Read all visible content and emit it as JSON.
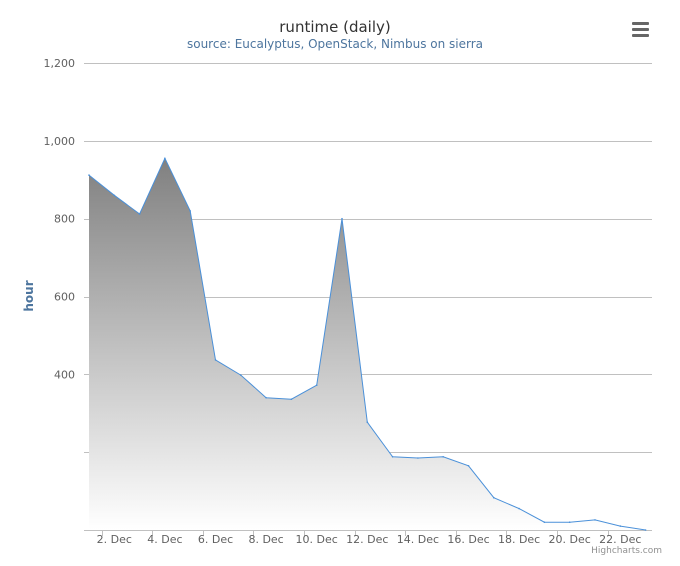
{
  "chart_data": {
    "type": "area",
    "title": "runtime (daily)",
    "subtitle": "source: Eucalyptus, OpenStack, Nimbus on sierra",
    "xlabel": "",
    "ylabel": "hour",
    "x": [
      "1. Dec",
      "2. Dec",
      "3. Dec",
      "4. Dec",
      "5. Dec",
      "6. Dec",
      "7. Dec",
      "8. Dec",
      "9. Dec",
      "10. Dec",
      "11. Dec",
      "12. Dec",
      "13. Dec",
      "14. Dec",
      "15. Dec",
      "16. Dec",
      "17. Dec",
      "18. Dec",
      "19. Dec",
      "20. Dec",
      "21. Dec",
      "22. Dec",
      "23. Dec"
    ],
    "series": [
      {
        "name": "",
        "values": [
          912,
          860,
          812,
          955,
          820,
          437,
          398,
          340,
          336,
          372,
          800,
          277,
          188,
          185,
          188,
          165,
          83,
          55,
          20,
          20,
          26,
          10,
          0
        ]
      }
    ],
    "x_tick_labels": [
      "2. Dec",
      "4. Dec",
      "6. Dec",
      "8. Dec",
      "10. Dec",
      "12. Dec",
      "14. Dec",
      "16. Dec",
      "18. Dec",
      "20. Dec",
      "22. Dec"
    ],
    "y_tick_labels": [
      "400",
      "600",
      "800",
      "1,000",
      "1,200"
    ],
    "ylim": [
      0,
      1200
    ],
    "gridlines_y": [
      0,
      200,
      400,
      600,
      800,
      1000,
      1200
    ],
    "grid": true,
    "legend": "none",
    "colors": {
      "line": "#4a90d9",
      "fill_top": "#808080",
      "fill_bottom": "#ffffff",
      "grid": "#c0c0c0"
    }
  },
  "credits": "Highcharts.com",
  "menu_icon": "hamburger-menu-icon"
}
